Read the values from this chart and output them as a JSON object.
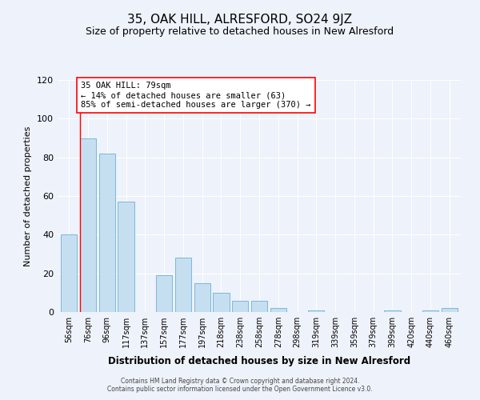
{
  "title": "35, OAK HILL, ALRESFORD, SO24 9JZ",
  "subtitle": "Size of property relative to detached houses in New Alresford",
  "xlabel": "Distribution of detached houses by size in New Alresford",
  "ylabel": "Number of detached properties",
  "bar_color": "#c5dff0",
  "bar_edge_color": "#7bb8d8",
  "categories": [
    "56sqm",
    "76sqm",
    "96sqm",
    "117sqm",
    "137sqm",
    "157sqm",
    "177sqm",
    "197sqm",
    "218sqm",
    "238sqm",
    "258sqm",
    "278sqm",
    "298sqm",
    "319sqm",
    "339sqm",
    "359sqm",
    "379sqm",
    "399sqm",
    "420sqm",
    "440sqm",
    "460sqm"
  ],
  "values": [
    40,
    90,
    82,
    57,
    0,
    19,
    28,
    15,
    10,
    6,
    6,
    2,
    0,
    1,
    0,
    0,
    0,
    1,
    0,
    1,
    2
  ],
  "annotation_line1": "35 OAK HILL: 79sqm",
  "annotation_line2": "← 14% of detached houses are smaller (63)",
  "annotation_line3": "85% of semi-detached houses are larger (370) →",
  "marker_line_bar_index": 1,
  "ylim": [
    0,
    120
  ],
  "yticks": [
    0,
    20,
    40,
    60,
    80,
    100,
    120
  ],
  "background_color": "#eef2fa",
  "grid_color": "#ffffff",
  "footer_line1": "Contains HM Land Registry data © Crown copyright and database right 2024.",
  "footer_line2": "Contains public sector information licensed under the Open Government Licence v3.0."
}
